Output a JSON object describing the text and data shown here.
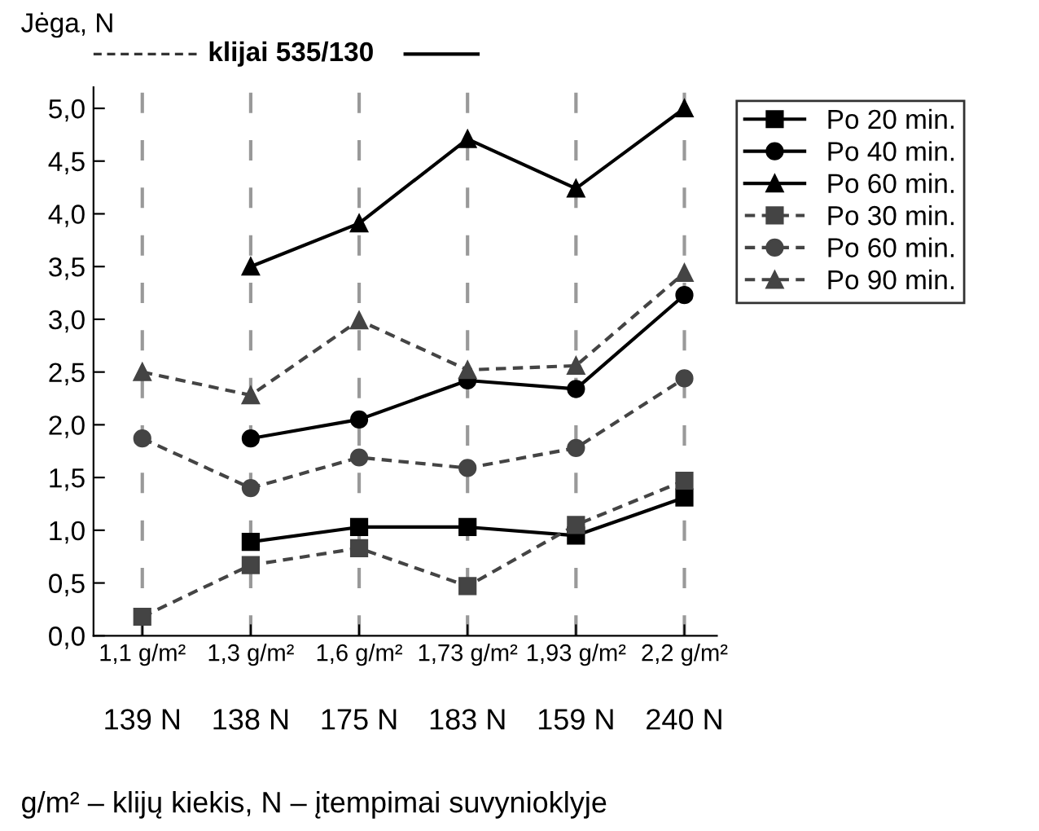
{
  "chart_data": {
    "type": "line",
    "title": "klijai 535/130",
    "ylabel": "Jėga, N",
    "xlabel": "g/m² – klijų kiekis, N – įtempimai suvynioklyje",
    "categories": [
      "1,1 g/m²",
      "1,3 g/m²",
      "1,6 g/m²",
      "1,73 g/m²",
      "1,93 g/m²",
      "2,2 g/m²"
    ],
    "annotations": [
      "139 N",
      "138 N",
      "175 N",
      "183 N",
      "159 N",
      "240 N"
    ],
    "series": [
      {
        "name": "Po 20 min.",
        "color": "#000000",
        "marker": "square",
        "line_style": "solid",
        "values": [
          null,
          0.89,
          1.03,
          1.03,
          0.95,
          1.31
        ]
      },
      {
        "name": "Po 40 min.",
        "color": "#000000",
        "marker": "circle",
        "line_style": "solid",
        "values": [
          null,
          1.87,
          2.05,
          2.42,
          2.34,
          3.23
        ]
      },
      {
        "name": "Po 60 min.",
        "color": "#000000",
        "marker": "triangle",
        "line_style": "solid",
        "values": [
          null,
          3.5,
          3.91,
          4.71,
          4.24,
          5.0
        ]
      },
      {
        "name": "Po 30 min.",
        "color": "#444444",
        "marker": "square",
        "line_style": "dashed",
        "values": [
          0.18,
          0.67,
          0.83,
          0.47,
          1.05,
          1.47
        ]
      },
      {
        "name": "Po 60 min.",
        "color": "#444444",
        "marker": "circle",
        "line_style": "dashed",
        "values": [
          1.87,
          1.4,
          1.69,
          1.59,
          1.78,
          2.44
        ]
      },
      {
        "name": "Po 90 min.",
        "color": "#444444",
        "marker": "triangle",
        "line_style": "dashed",
        "values": [
          2.5,
          2.28,
          2.99,
          2.52,
          2.56,
          3.44
        ]
      }
    ],
    "ylim": [
      0,
      5.2
    ],
    "yticks": [
      {
        "value": 0,
        "label": "0,0"
      },
      {
        "value": 0.5,
        "label": "0,5"
      },
      {
        "value": 1,
        "label": "1,0"
      },
      {
        "value": 1.5,
        "label": "1,5"
      },
      {
        "value": 2,
        "label": "2,0"
      },
      {
        "value": 2.5,
        "label": "2,5"
      },
      {
        "value": 3,
        "label": "3,0"
      },
      {
        "value": 3.5,
        "label": "3,5"
      },
      {
        "value": 4,
        "label": "4,0"
      },
      {
        "value": 4.5,
        "label": "4,5"
      },
      {
        "value": 5,
        "label": "5,0"
      }
    ],
    "grid": "x",
    "legend": "top right"
  }
}
